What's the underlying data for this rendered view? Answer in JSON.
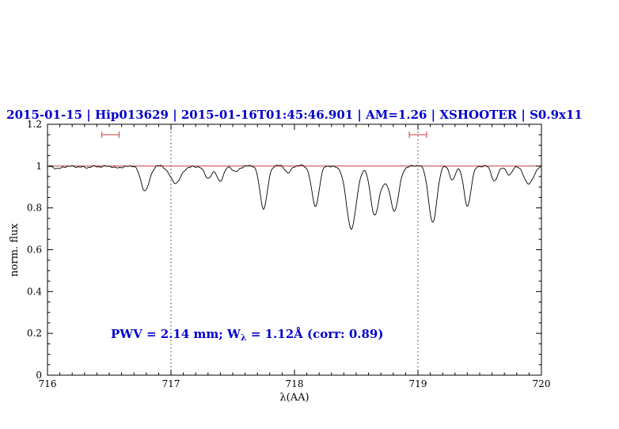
{
  "chart_data": {
    "type": "line",
    "title": "2015-01-15 | Hip013629 | 2015-01-16T01:45:46.901 | AM=1.26 | XSHOOTER | S0.9x11",
    "xlabel": "λ(AA)",
    "ylabel": "norm. flux",
    "xlim": [
      716,
      720
    ],
    "ylim": [
      0,
      1.2
    ],
    "x_ticks": [
      "716",
      "717",
      "718",
      "719",
      "720"
    ],
    "y_ticks": [
      "0",
      "0.2",
      "0.4",
      "0.6",
      "0.8",
      "1",
      "1.2"
    ],
    "x_minor_step": 0.1,
    "y_minor_step": 0.05,
    "grid": "off",
    "legend": "none",
    "dotted_vlines": [
      717,
      719
    ],
    "continuum_line_y": 1.0,
    "range_markers": [
      {
        "x_min": 716.44,
        "x_max": 716.58,
        "y": 1.15
      },
      {
        "x_min": 718.93,
        "x_max": 719.07,
        "y": 1.15
      }
    ],
    "annotation": {
      "before": "PWV  =  2.14  mm; W",
      "sub": "λ",
      "after": "  =  1.12Å  (corr: 0.89)"
    },
    "series": [
      {
        "name": "normalized telluric spectrum",
        "model": "continuum_minus_gaussians",
        "continuum": 1.0,
        "absorption_features": [
          {
            "center": 716.1,
            "depth": 0.012,
            "sigma": 0.035
          },
          {
            "center": 716.32,
            "depth": 0.01,
            "sigma": 0.03
          },
          {
            "center": 716.55,
            "depth": 0.01,
            "sigma": 0.03
          },
          {
            "center": 716.79,
            "depth": 0.115,
            "sigma": 0.035
          },
          {
            "center": 717.04,
            "depth": 0.08,
            "sigma": 0.045
          },
          {
            "center": 717.3,
            "depth": 0.06,
            "sigma": 0.03
          },
          {
            "center": 717.4,
            "depth": 0.068,
            "sigma": 0.028
          },
          {
            "center": 717.52,
            "depth": 0.028,
            "sigma": 0.025
          },
          {
            "center": 717.75,
            "depth": 0.2,
            "sigma": 0.03
          },
          {
            "center": 717.95,
            "depth": 0.03,
            "sigma": 0.022
          },
          {
            "center": 718.17,
            "depth": 0.19,
            "sigma": 0.03
          },
          {
            "center": 718.46,
            "depth": 0.3,
            "sigma": 0.04
          },
          {
            "center": 718.65,
            "depth": 0.235,
            "sigma": 0.035
          },
          {
            "center": 718.73,
            "depth": 0.05,
            "sigma": 0.03
          },
          {
            "center": 718.81,
            "depth": 0.215,
            "sigma": 0.035
          },
          {
            "center": 719.12,
            "depth": 0.27,
            "sigma": 0.033
          },
          {
            "center": 719.28,
            "depth": 0.065,
            "sigma": 0.022
          },
          {
            "center": 719.4,
            "depth": 0.195,
            "sigma": 0.028
          },
          {
            "center": 719.62,
            "depth": 0.07,
            "sigma": 0.026
          },
          {
            "center": 719.74,
            "depth": 0.048,
            "sigma": 0.022
          },
          {
            "center": 719.9,
            "depth": 0.085,
            "sigma": 0.038
          }
        ]
      }
    ],
    "colors": {
      "title_text": "#0000cc",
      "annotation_text": "#0000cc",
      "spectrum": "#000000",
      "continuum_line": "#bb2222",
      "range_marker": "#cc5555",
      "axis": "#000000"
    }
  }
}
